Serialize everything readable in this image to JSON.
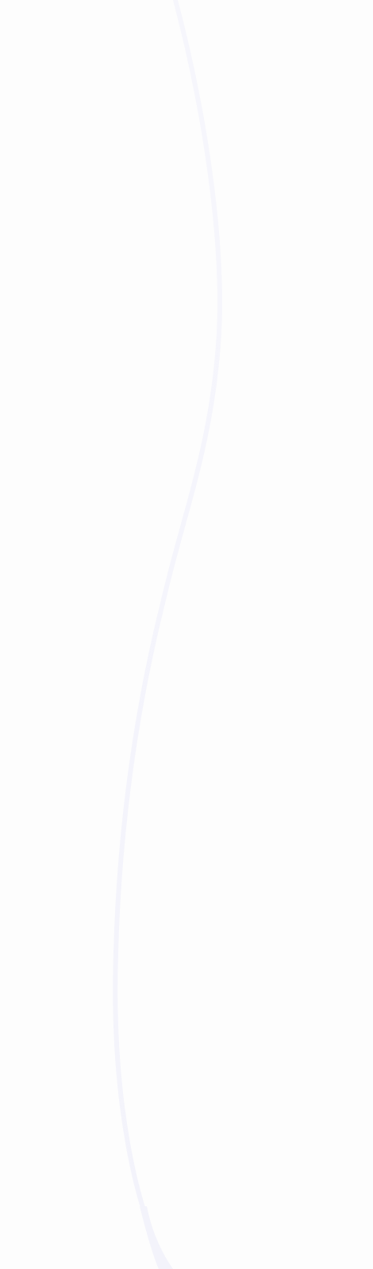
{
  "colors": {
    "background": "#fdfdfd",
    "curve_stroke": "#f6f6fc"
  },
  "decoration": {
    "shape": "wavy-vertical-curve"
  }
}
